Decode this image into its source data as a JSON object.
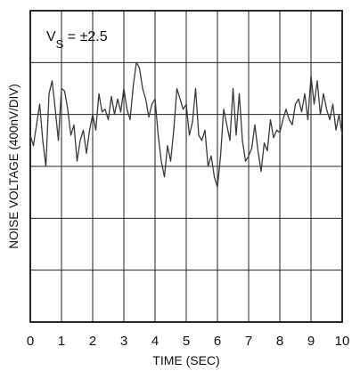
{
  "chart_data": {
    "type": "line",
    "title": "",
    "annotation": {
      "main": "V",
      "subscript": "S",
      "rest": " = ±2.5"
    },
    "xlabel": "TIME (SEC)",
    "ylabel": "NOISE VOLTAGE (400nV/DIV)",
    "x_ticks": [
      "0",
      "1",
      "2",
      "3",
      "4",
      "5",
      "6",
      "7",
      "8",
      "9",
      "10"
    ],
    "xlim": [
      0,
      10
    ],
    "ylim": [
      -4,
      2
    ],
    "y_divisions": 6,
    "grid": true,
    "line_color": "#3a3a3a",
    "grid_color": "#222222",
    "series": [
      {
        "x": [
          0.0,
          0.1,
          0.2,
          0.3,
          0.4,
          0.5,
          0.6,
          0.7,
          0.8,
          0.9,
          1.0,
          1.1,
          1.2,
          1.3,
          1.4,
          1.5,
          1.6,
          1.7,
          1.8,
          1.9,
          2.0,
          2.1,
          2.2,
          2.3,
          2.4,
          2.5,
          2.6,
          2.7,
          2.8,
          2.9,
          3.0,
          3.1,
          3.2,
          3.3,
          3.4,
          3.5,
          3.6,
          3.7,
          3.8,
          3.9,
          4.0,
          4.1,
          4.2,
          4.3,
          4.4,
          4.5,
          4.6,
          4.7,
          4.8,
          4.9,
          5.0,
          5.1,
          5.2,
          5.3,
          5.4,
          5.5,
          5.6,
          5.7,
          5.8,
          5.9,
          6.0,
          6.1,
          6.2,
          6.3,
          6.4,
          6.5,
          6.6,
          6.7,
          6.8,
          6.9,
          7.0,
          7.1,
          7.2,
          7.3,
          7.4,
          7.5,
          7.6,
          7.7,
          7.8,
          7.9,
          8.0,
          8.1,
          8.2,
          8.3,
          8.4,
          8.5,
          8.6,
          8.7,
          8.8,
          8.9,
          9.0,
          9.1,
          9.2,
          9.3,
          9.4,
          9.5,
          9.6,
          9.7,
          9.8,
          9.9,
          10.0
        ],
        "values": [
          -0.4,
          -0.6,
          -0.2,
          0.2,
          -0.5,
          -1.0,
          0.4,
          0.65,
          0.1,
          -0.5,
          0.5,
          0.45,
          0.1,
          -0.4,
          -0.2,
          -0.9,
          -0.5,
          -0.3,
          -0.75,
          -0.3,
          0.0,
          -0.3,
          0.4,
          0.05,
          0.1,
          -0.1,
          0.35,
          0.0,
          0.3,
          0.05,
          0.5,
          0.1,
          -0.1,
          0.55,
          1.0,
          0.9,
          0.5,
          0.3,
          -0.05,
          0.2,
          0.3,
          -0.4,
          -0.9,
          -1.2,
          -0.6,
          -0.9,
          -0.3,
          0.5,
          0.3,
          0.1,
          0.2,
          -0.4,
          -0.15,
          0.5,
          -0.4,
          -0.5,
          -0.3,
          -1.0,
          -0.8,
          -1.2,
          -1.4,
          -0.8,
          0.1,
          -0.2,
          -0.5,
          0.5,
          -0.4,
          0.4,
          -0.5,
          -0.9,
          -0.8,
          -0.65,
          -0.2,
          -0.7,
          -1.1,
          -0.55,
          -0.7,
          -0.1,
          -0.45,
          -0.3,
          -0.35,
          -0.1,
          0.1,
          -0.1,
          -0.2,
          0.2,
          0.3,
          0.05,
          0.4,
          -0.1,
          0.75,
          0.2,
          0.65,
          0.0,
          0.4,
          0.1,
          -0.1,
          0.2,
          -0.3,
          0.0,
          -0.4
        ]
      }
    ]
  }
}
